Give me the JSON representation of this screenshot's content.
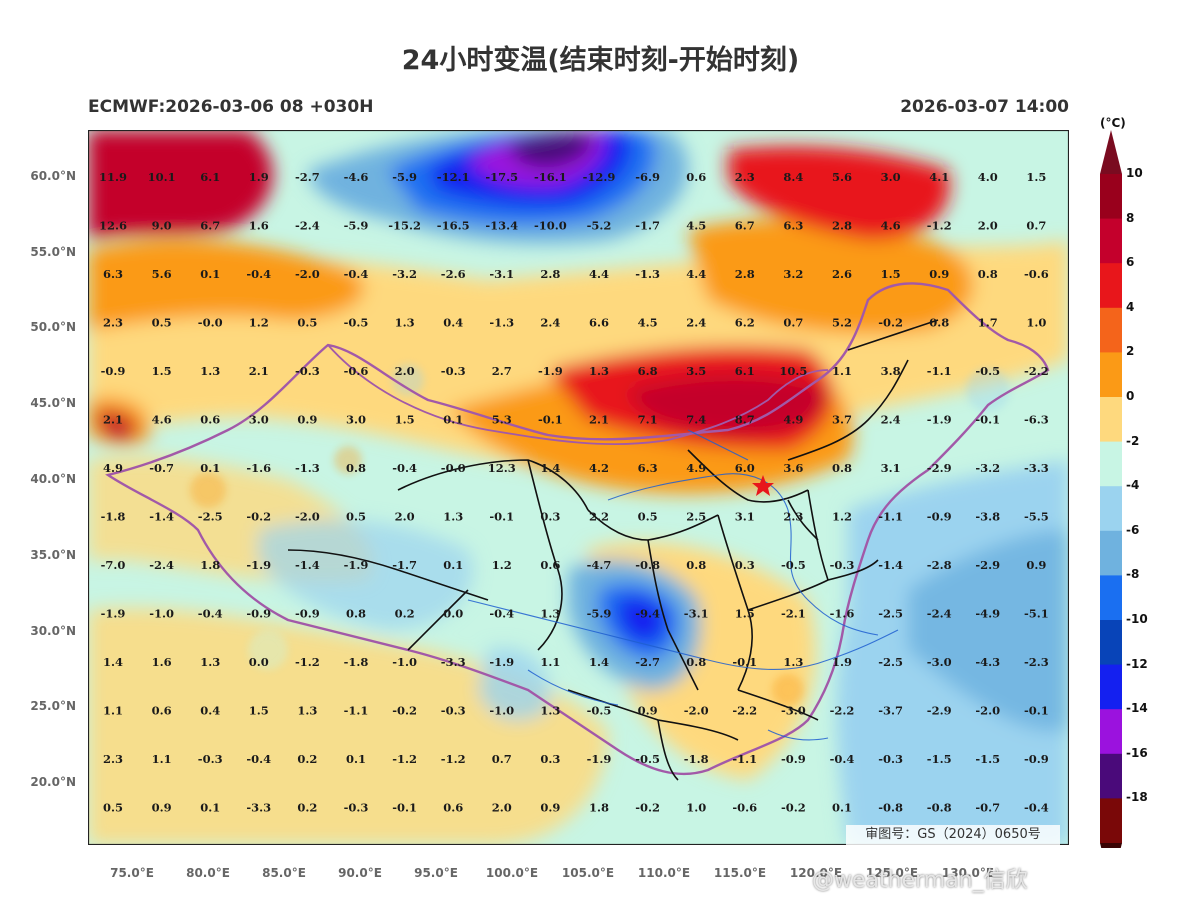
{
  "title": "24小时变温(结束时刻-开始时刻)",
  "model_run": "ECMWF:2026-03-06 08 +030H",
  "valid_time": "2026-03-07 14:00",
  "unit": "(°C)",
  "approval_number": "审图号：GS（2024）0650号",
  "watermark": "@weatherman_信欣",
  "lat_ticks": [
    "60.0°N",
    "55.0°N",
    "50.0°N",
    "45.0°N",
    "40.0°N",
    "35.0°N",
    "30.0°N",
    "25.0°N",
    "20.0°N"
  ],
  "lon_ticks": [
    "75.0°E",
    "80.0°E",
    "85.0°E",
    "90.0°E",
    "95.0°E",
    "100.0°E",
    "105.0°E",
    "110.0°E",
    "115.0°E",
    "120.0°E",
    "125.0°E",
    "130.0°E"
  ],
  "colorbar": {
    "labels": [
      "10",
      "8",
      "6",
      "4",
      "2",
      "0",
      "-2",
      "-4",
      "-6",
      "-8",
      "-10",
      "-12",
      "-14",
      "-16",
      "-18"
    ],
    "colors": [
      "#99001c",
      "#c4002c",
      "#e8161b",
      "#f4641b",
      "#fb9a16",
      "#fed97e",
      "#c8f5e4",
      "#9bd3ef",
      "#6fb2df",
      "#1a6ff1",
      "#0844b8",
      "#1420f0",
      "#9b12de",
      "#4a0a7a",
      "#7a0808"
    ],
    "top_color": "#7a0b20",
    "bottom_color": "#3a0404"
  },
  "grid_values": [
    [
      "11.9",
      "10.1",
      "6.1",
      "1.9",
      "-2.7",
      "-4.6",
      "-5.9",
      "-12.1",
      "-17.5",
      "-16.1",
      "-12.9",
      "-6.9",
      "0.6",
      "2.3",
      "8.4",
      "5.6",
      "3.0",
      "4.1",
      "4.0",
      "1.5"
    ],
    [
      "12.6",
      "9.0",
      "6.7",
      "1.6",
      "-2.4",
      "-5.9",
      "-15.2",
      "-16.5",
      "-13.4",
      "-10.0",
      "-5.2",
      "-1.7",
      "4.5",
      "6.7",
      "6.3",
      "2.8",
      "4.6",
      "-1.2",
      "2.0",
      "0.7"
    ],
    [
      "6.3",
      "5.6",
      "0.1",
      "-0.4",
      "-2.0",
      "-0.4",
      "-3.2",
      "-2.6",
      "-3.1",
      "2.8",
      "4.4",
      "-1.3",
      "4.4",
      "2.8",
      "3.2",
      "2.6",
      "1.5",
      "0.9",
      "0.8",
      "-0.6"
    ],
    [
      "2.3",
      "0.5",
      "-0.0",
      "1.2",
      "0.5",
      "-0.5",
      "1.3",
      "0.4",
      "-1.3",
      "2.4",
      "6.6",
      "4.5",
      "2.4",
      "6.2",
      "0.7",
      "5.2",
      "-0.2",
      "0.8",
      "1.7",
      "1.0"
    ],
    [
      "-0.9",
      "1.5",
      "1.3",
      "2.1",
      "-0.3",
      "-0.6",
      "2.0",
      "-0.3",
      "2.7",
      "-1.9",
      "1.3",
      "6.8",
      "3.5",
      "6.1",
      "10.5",
      "1.1",
      "3.8",
      "-1.1",
      "-0.5",
      "-2.2"
    ],
    [
      "2.1",
      "4.6",
      "0.6",
      "3.0",
      "0.9",
      "3.0",
      "1.5",
      "0.1",
      "5.3",
      "-0.1",
      "2.1",
      "7.1",
      "7.4",
      "8.7",
      "4.9",
      "3.7",
      "2.4",
      "-1.9",
      "-0.1",
      "-6.3"
    ],
    [
      "4.9",
      "-0.7",
      "0.1",
      "-1.6",
      "-1.3",
      "0.8",
      "-0.4",
      "-0.0",
      "12.3",
      "1.4",
      "4.2",
      "6.3",
      "4.9",
      "6.0",
      "3.6",
      "0.8",
      "3.1",
      "-2.9",
      "-3.2",
      "-3.3"
    ],
    [
      "-1.8",
      "-1.4",
      "-2.5",
      "-0.2",
      "-2.0",
      "0.5",
      "2.0",
      "1.3",
      "-0.1",
      "0.3",
      "2.2",
      "0.5",
      "2.5",
      "3.1",
      "2.3",
      "1.2",
      "-1.1",
      "-0.9",
      "-3.8",
      "-5.5"
    ],
    [
      "-7.0",
      "-2.4",
      "1.8",
      "-1.9",
      "-1.4",
      "-1.9",
      "-1.7",
      "0.1",
      "1.2",
      "0.6",
      "-4.7",
      "-0.8",
      "0.8",
      "0.3",
      "-0.5",
      "-0.3",
      "-1.4",
      "-2.8",
      "-2.9",
      "0.9"
    ],
    [
      "-1.9",
      "-1.0",
      "-0.4",
      "-0.9",
      "-0.9",
      "0.8",
      "0.2",
      "0.0",
      "-0.4",
      "1.3",
      "-5.9",
      "-9.4",
      "-3.1",
      "1.5",
      "-2.1",
      "-1.6",
      "-2.5",
      "-2.4",
      "-4.9",
      "-5.1"
    ],
    [
      "1.4",
      "1.6",
      "1.3",
      "0.0",
      "-1.2",
      "-1.8",
      "-1.0",
      "-3.3",
      "-1.9",
      "1.1",
      "1.4",
      "-2.7",
      "0.8",
      "-0.1",
      "1.3",
      "1.9",
      "-2.5",
      "-3.0",
      "-4.3",
      "-2.3"
    ],
    [
      "1.1",
      "0.6",
      "0.4",
      "1.5",
      "1.3",
      "-1.1",
      "-0.2",
      "-0.3",
      "-1.0",
      "1.3",
      "-0.5",
      "0.9",
      "-2.0",
      "-2.2",
      "-3.0",
      "-2.2",
      "-3.7",
      "-2.9",
      "-2.0",
      "-0.1"
    ],
    [
      "2.3",
      "1.1",
      "-0.3",
      "-0.4",
      "0.2",
      "0.1",
      "-1.2",
      "-1.2",
      "0.7",
      "0.3",
      "-1.9",
      "-0.5",
      "-1.8",
      "-1.1",
      "-0.9",
      "-0.4",
      "-0.3",
      "-1.5",
      "-1.5",
      "-0.9"
    ],
    [
      "0.5",
      "0.9",
      "0.1",
      "-3.3",
      "0.2",
      "-0.3",
      "-0.1",
      "0.6",
      "2.0",
      "0.9",
      "1.8",
      "-0.2",
      "1.0",
      "-0.6",
      "-0.2",
      "0.1",
      "-0.8",
      "-0.8",
      "-0.7",
      "-0.4"
    ]
  ]
}
